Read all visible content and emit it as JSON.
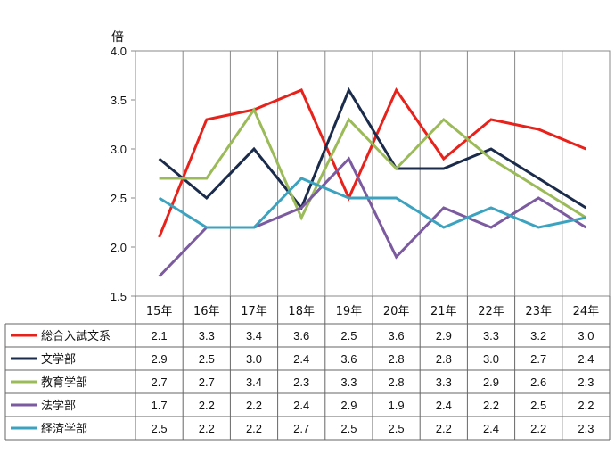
{
  "chart_data": {
    "type": "line",
    "y_unit": "倍",
    "ylim": [
      1.5,
      4.0
    ],
    "y_ticks": [
      "1.5",
      "2.0",
      "2.5",
      "3.0",
      "3.5",
      "4.0"
    ],
    "categories": [
      "15年",
      "16年",
      "17年",
      "18年",
      "19年",
      "20年",
      "21年",
      "22年",
      "23年",
      "24年"
    ],
    "grid": "vertical category lines",
    "legend": "data-table below chart",
    "series": [
      {
        "name": "総合入試文系",
        "color": "#e8211a",
        "values": [
          2.1,
          3.3,
          3.4,
          3.6,
          2.5,
          3.6,
          2.9,
          3.3,
          3.2,
          3.0
        ],
        "labels": [
          "2.1",
          "3.3",
          "3.4",
          "3.6",
          "2.5",
          "3.6",
          "2.9",
          "3.3",
          "3.2",
          "3.0"
        ]
      },
      {
        "name": "文学部",
        "color": "#1b2b4b",
        "values": [
          2.9,
          2.5,
          3.0,
          2.4,
          3.6,
          2.8,
          2.8,
          3.0,
          2.7,
          2.4
        ],
        "labels": [
          "2.9",
          "2.5",
          "3.0",
          "2.4",
          "3.6",
          "2.8",
          "2.8",
          "3.0",
          "2.7",
          "2.4"
        ]
      },
      {
        "name": "教育学部",
        "color": "#9bbb59",
        "values": [
          2.7,
          2.7,
          3.4,
          2.3,
          3.3,
          2.8,
          3.3,
          2.9,
          2.6,
          2.3
        ],
        "labels": [
          "2.7",
          "2.7",
          "3.4",
          "2.3",
          "3.3",
          "2.8",
          "3.3",
          "2.9",
          "2.6",
          "2.3"
        ]
      },
      {
        "name": "法学部",
        "color": "#7b5aa0",
        "values": [
          1.7,
          2.2,
          2.2,
          2.4,
          2.9,
          1.9,
          2.4,
          2.2,
          2.5,
          2.2
        ],
        "labels": [
          "1.7",
          "2.2",
          "2.2",
          "2.4",
          "2.9",
          "1.9",
          "2.4",
          "2.2",
          "2.5",
          "2.2"
        ]
      },
      {
        "name": "経済学部",
        "color": "#3ba3bf",
        "values": [
          2.5,
          2.2,
          2.2,
          2.7,
          2.5,
          2.5,
          2.2,
          2.4,
          2.2,
          2.3
        ],
        "labels": [
          "2.5",
          "2.2",
          "2.2",
          "2.7",
          "2.5",
          "2.5",
          "2.2",
          "2.4",
          "2.2",
          "2.3"
        ]
      }
    ]
  }
}
